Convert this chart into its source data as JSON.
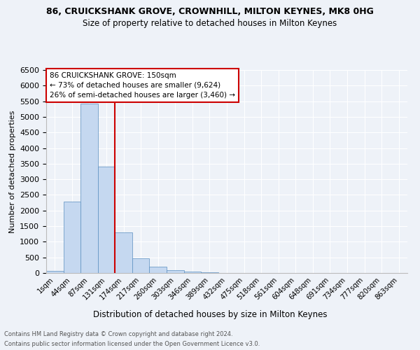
{
  "title": "86, CRUICKSHANK GROVE, CROWNHILL, MILTON KEYNES, MK8 0HG",
  "subtitle": "Size of property relative to detached houses in Milton Keynes",
  "xlabel": "Distribution of detached houses by size in Milton Keynes",
  "ylabel": "Number of detached properties",
  "bar_labels": [
    "1sqm",
    "44sqm",
    "87sqm",
    "131sqm",
    "174sqm",
    "217sqm",
    "260sqm",
    "303sqm",
    "346sqm",
    "389sqm",
    "432sqm",
    "475sqm",
    "518sqm",
    "561sqm",
    "604sqm",
    "648sqm",
    "691sqm",
    "734sqm",
    "777sqm",
    "820sqm",
    "863sqm"
  ],
  "bar_values": [
    60,
    2280,
    5430,
    3400,
    1310,
    480,
    195,
    100,
    55,
    20,
    10,
    5,
    3,
    2,
    2,
    2,
    1,
    1,
    1,
    1,
    1
  ],
  "bar_color": "#c5d8f0",
  "bar_edge_color": "#5a8fc0",
  "ylim": [
    0,
    6500
  ],
  "yticks": [
    0,
    500,
    1000,
    1500,
    2000,
    2500,
    3000,
    3500,
    4000,
    4500,
    5000,
    5500,
    6000,
    6500
  ],
  "vline_color": "#cc0000",
  "annotation_title": "86 CRUICKSHANK GROVE: 150sqm",
  "annotation_line1": "← 73% of detached houses are smaller (9,624)",
  "annotation_line2": "26% of semi-detached houses are larger (3,460) →",
  "annotation_box_color": "#cc0000",
  "footer_line1": "Contains HM Land Registry data © Crown copyright and database right 2024.",
  "footer_line2": "Contains public sector information licensed under the Open Government Licence v3.0.",
  "background_color": "#eef2f8",
  "grid_color": "#ffffff"
}
